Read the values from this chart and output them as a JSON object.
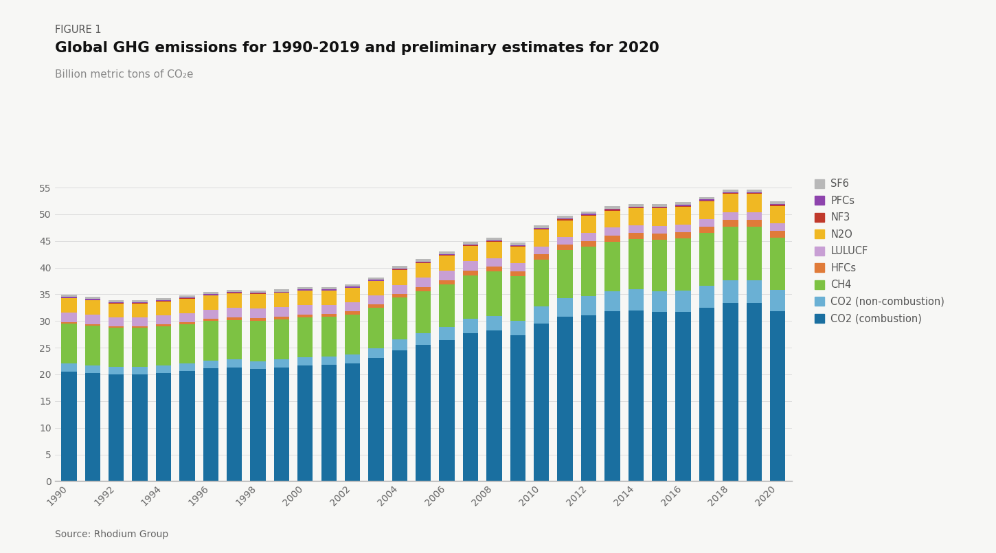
{
  "years": [
    1990,
    1991,
    1992,
    1993,
    1994,
    1995,
    1996,
    1997,
    1998,
    1999,
    2000,
    2001,
    2002,
    2003,
    2004,
    2005,
    2006,
    2007,
    2008,
    2009,
    2010,
    2011,
    2012,
    2013,
    2014,
    2015,
    2016,
    2017,
    2018,
    2019,
    2020
  ],
  "series": {
    "CO2 (combustion)": [
      20.5,
      20.2,
      20.0,
      20.0,
      20.2,
      20.6,
      21.1,
      21.3,
      21.0,
      21.3,
      21.7,
      21.8,
      22.1,
      23.1,
      24.5,
      25.5,
      26.5,
      27.7,
      28.2,
      27.3,
      29.5,
      30.8,
      31.1,
      31.8,
      32.0,
      31.7,
      31.7,
      32.5,
      33.4,
      33.4,
      31.8
    ],
    "CO2 (non-combustion)": [
      1.5,
      1.5,
      1.4,
      1.4,
      1.5,
      1.5,
      1.5,
      1.5,
      1.5,
      1.5,
      1.5,
      1.5,
      1.6,
      1.8,
      2.1,
      2.2,
      2.4,
      2.7,
      2.8,
      2.7,
      3.2,
      3.5,
      3.6,
      3.8,
      3.9,
      3.9,
      4.0,
      4.1,
      4.3,
      4.3,
      4.0
    ],
    "CH4": [
      7.5,
      7.4,
      7.3,
      7.3,
      7.3,
      7.3,
      7.4,
      7.4,
      7.5,
      7.5,
      7.5,
      7.5,
      7.5,
      7.6,
      7.8,
      7.9,
      8.0,
      8.2,
      8.3,
      8.4,
      8.8,
      9.0,
      9.2,
      9.3,
      9.5,
      9.6,
      9.8,
      9.9,
      10.0,
      10.0,
      9.8
    ],
    "HFCs": [
      0.3,
      0.3,
      0.3,
      0.3,
      0.4,
      0.4,
      0.4,
      0.5,
      0.5,
      0.5,
      0.5,
      0.5,
      0.6,
      0.6,
      0.7,
      0.8,
      0.8,
      0.9,
      0.9,
      0.9,
      1.0,
      1.0,
      1.1,
      1.1,
      1.1,
      1.2,
      1.2,
      1.2,
      1.3,
      1.3,
      1.3
    ],
    "LULUCF": [
      1.8,
      1.8,
      1.7,
      1.7,
      1.7,
      1.7,
      1.7,
      1.8,
      1.9,
      1.8,
      1.8,
      1.7,
      1.7,
      1.7,
      1.7,
      1.7,
      1.7,
      1.7,
      1.6,
      1.6,
      1.5,
      1.5,
      1.5,
      1.5,
      1.4,
      1.4,
      1.4,
      1.4,
      1.4,
      1.4,
      1.4
    ],
    "N2O": [
      2.7,
      2.7,
      2.6,
      2.6,
      2.6,
      2.7,
      2.7,
      2.7,
      2.7,
      2.7,
      2.7,
      2.7,
      2.7,
      2.7,
      2.8,
      2.8,
      2.9,
      2.9,
      3.0,
      3.0,
      3.1,
      3.1,
      3.2,
      3.2,
      3.2,
      3.3,
      3.3,
      3.3,
      3.4,
      3.4,
      3.3
    ],
    "NF3": [
      0.05,
      0.05,
      0.05,
      0.05,
      0.05,
      0.05,
      0.06,
      0.06,
      0.06,
      0.06,
      0.06,
      0.06,
      0.07,
      0.07,
      0.08,
      0.09,
      0.1,
      0.11,
      0.13,
      0.15,
      0.17,
      0.17,
      0.17,
      0.17,
      0.17,
      0.17,
      0.17,
      0.17,
      0.17,
      0.17,
      0.17
    ],
    "PFCs": [
      0.15,
      0.15,
      0.15,
      0.15,
      0.15,
      0.15,
      0.15,
      0.15,
      0.15,
      0.15,
      0.15,
      0.15,
      0.16,
      0.16,
      0.17,
      0.18,
      0.18,
      0.18,
      0.19,
      0.19,
      0.2,
      0.2,
      0.2,
      0.2,
      0.2,
      0.2,
      0.2,
      0.2,
      0.2,
      0.2,
      0.2
    ],
    "SF6": [
      0.4,
      0.4,
      0.4,
      0.4,
      0.4,
      0.4,
      0.4,
      0.4,
      0.4,
      0.4,
      0.4,
      0.4,
      0.4,
      0.4,
      0.5,
      0.5,
      0.5,
      0.5,
      0.5,
      0.5,
      0.5,
      0.5,
      0.5,
      0.5,
      0.5,
      0.5,
      0.5,
      0.5,
      0.5,
      0.5,
      0.5
    ]
  },
  "colors": {
    "CO2 (combustion)": "#1a6fa0",
    "CO2 (non-combustion)": "#6ab0d4",
    "CH4": "#7dc243",
    "HFCs": "#e07b39",
    "LULUCF": "#c89fd4",
    "N2O": "#f0b823",
    "NF3": "#c0392b",
    "PFCs": "#8e44ad",
    "SF6": "#b8b8b8"
  },
  "title_prefix": "FIGURE 1",
  "title": "Global GHG emissions for 1990-2019 and preliminary estimates for 2020",
  "subtitle": "Billion metric tons of CO₂e",
  "source": "Source: Rhodium Group",
  "ylim": [
    0,
    57
  ],
  "yticks": [
    0,
    5,
    10,
    15,
    20,
    25,
    30,
    35,
    40,
    45,
    50,
    55
  ],
  "background_color": "#f7f7f5",
  "legend_order": [
    "SF6",
    "PFCs",
    "NF3",
    "N2O",
    "LULUCF",
    "HFCs",
    "CH4",
    "CO2 (non-combustion)",
    "CO2 (combustion)"
  ],
  "stack_order": [
    "CO2 (combustion)",
    "CO2 (non-combustion)",
    "CH4",
    "HFCs",
    "LULUCF",
    "N2O",
    "NF3",
    "PFCs",
    "SF6"
  ]
}
